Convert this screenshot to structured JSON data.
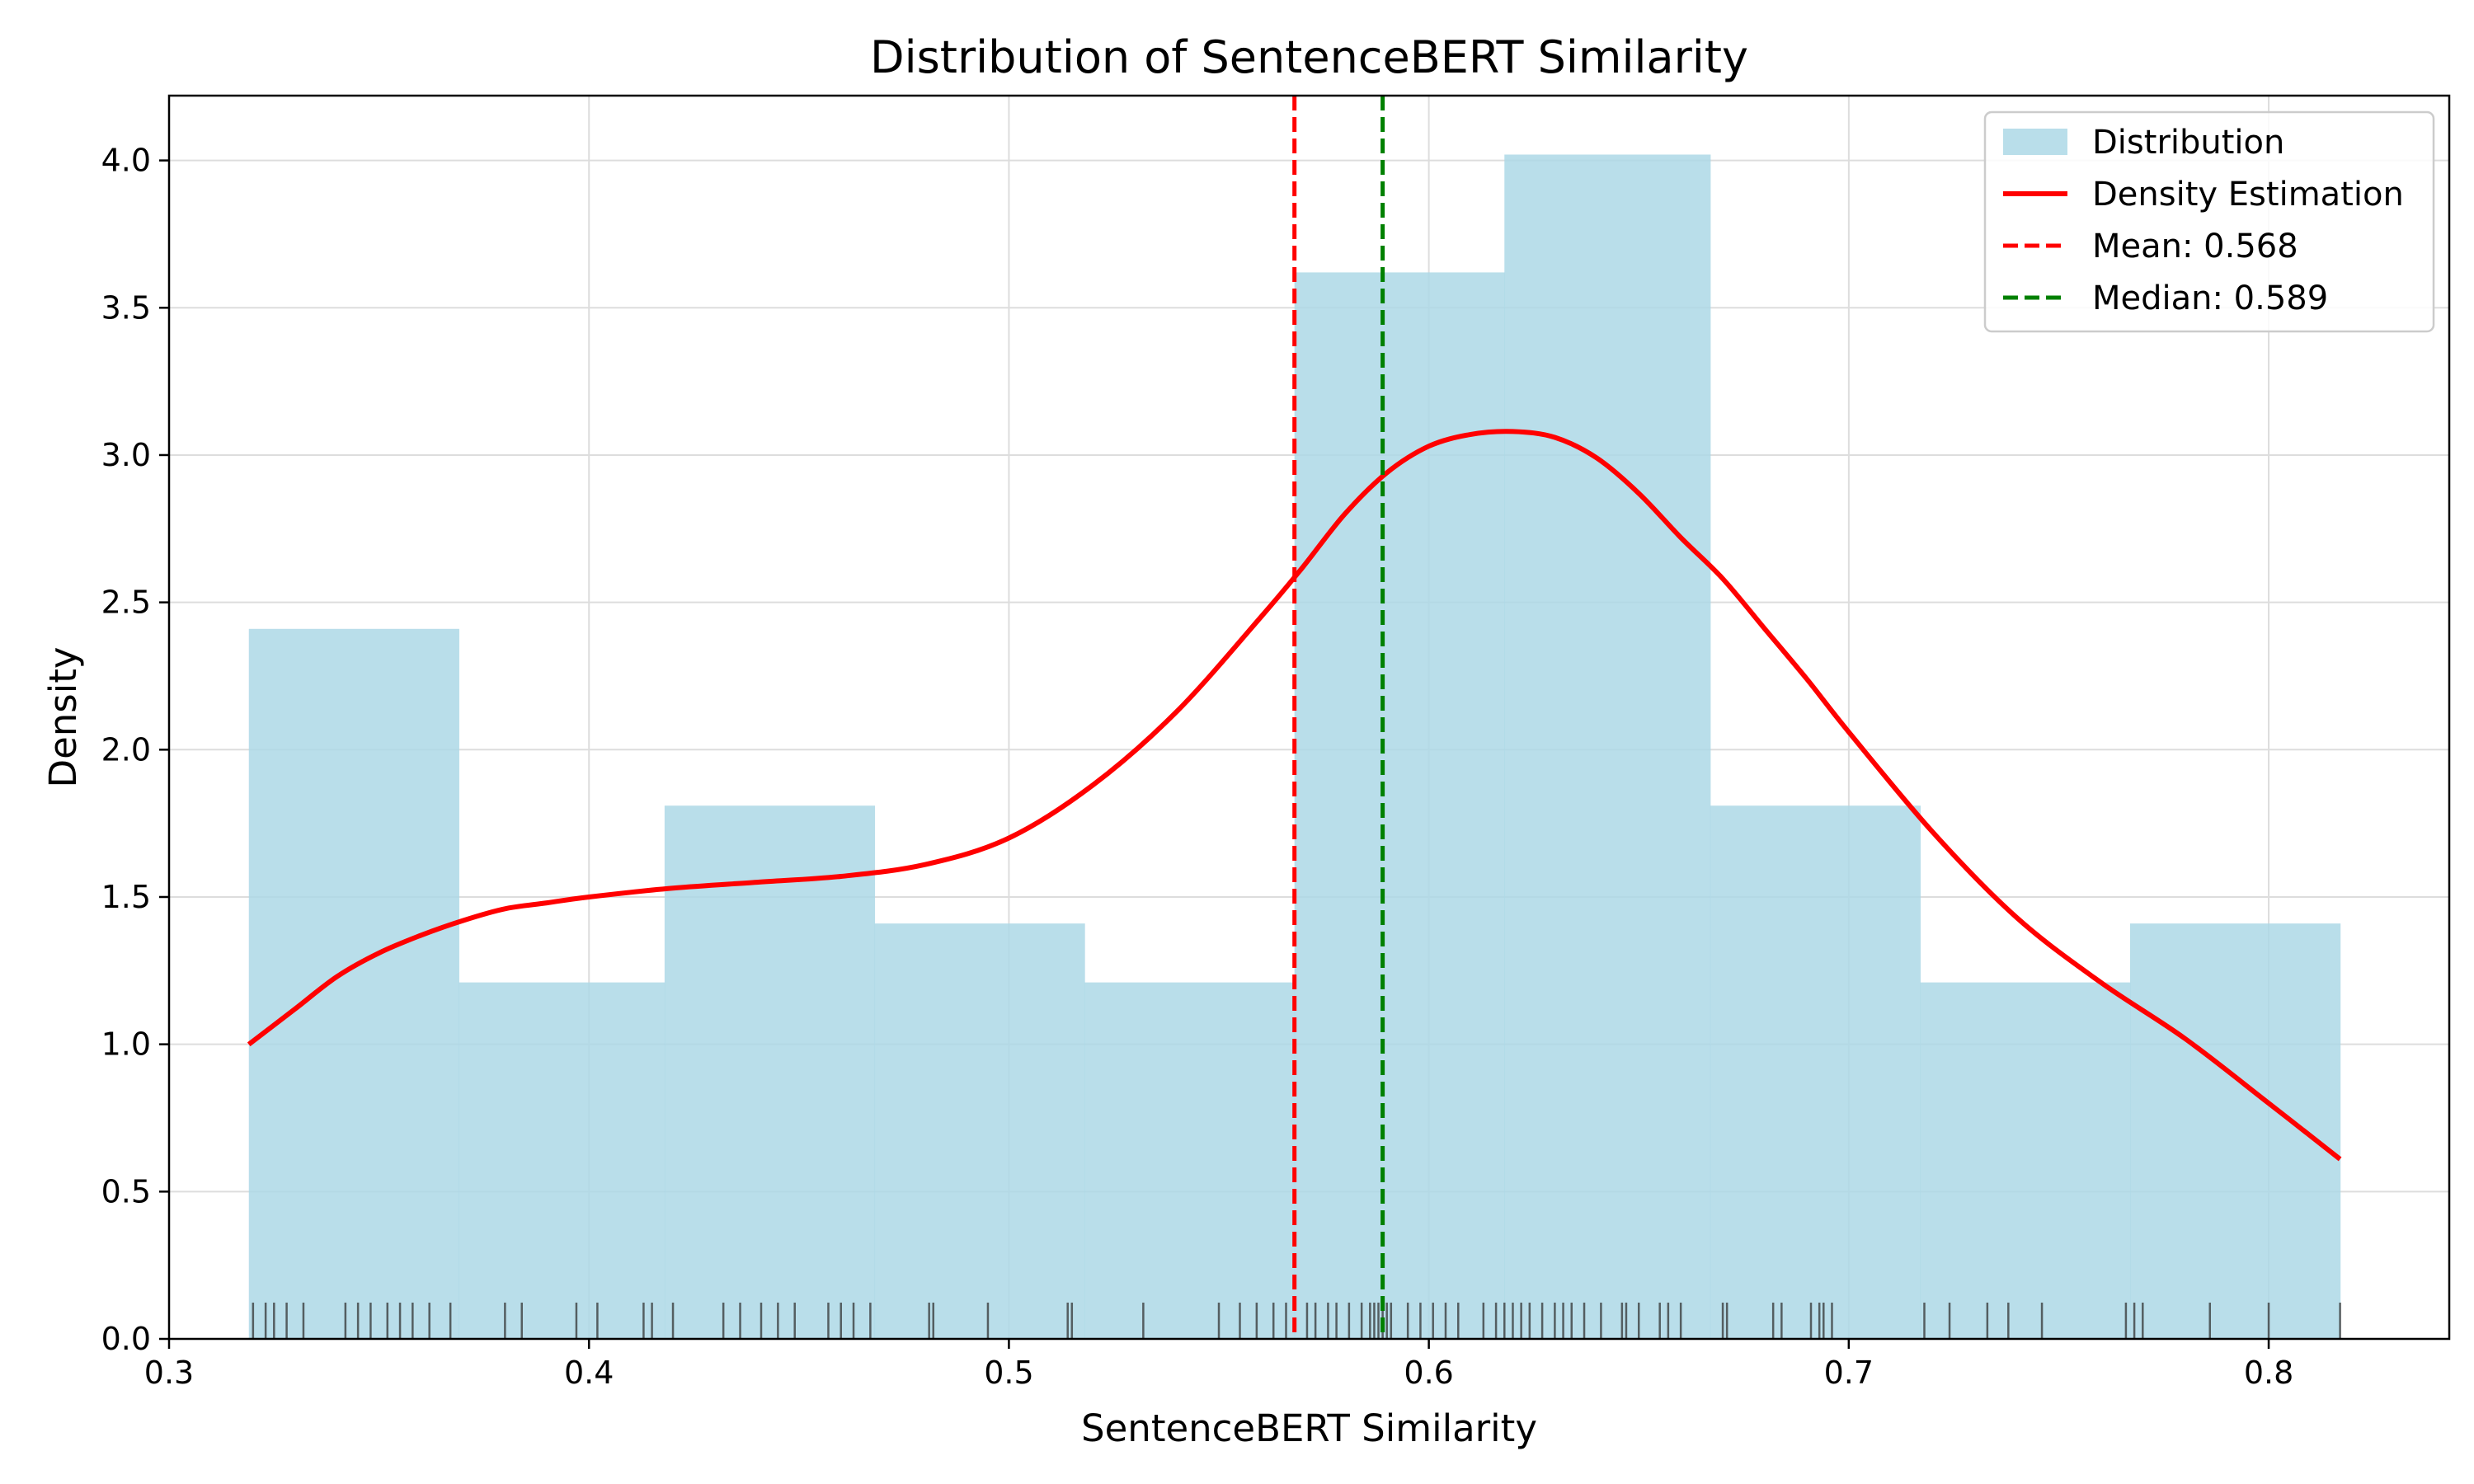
{
  "chart_data": {
    "type": "histogram",
    "title": "Distribution of SentenceBERT Similarity",
    "xlabel": "SentenceBERT Similarity",
    "ylabel": "Density",
    "xlim": [
      0.3,
      0.843
    ],
    "ylim": [
      0,
      4.22
    ],
    "xticks": [
      0.3,
      0.4,
      0.5,
      0.6,
      0.7,
      0.8
    ],
    "xtick_labels": [
      "0.3",
      "0.4",
      "0.5",
      "0.6",
      "0.7",
      "0.8"
    ],
    "yticks": [
      0.0,
      0.5,
      1.0,
      1.5,
      2.0,
      2.5,
      3.0,
      3.5,
      4.0
    ],
    "ytick_labels": [
      "0.0",
      "0.5",
      "1.0",
      "1.5",
      "2.0",
      "2.5",
      "3.0",
      "3.5",
      "4.0"
    ],
    "grid": true,
    "legend_position": "top-right",
    "bins": [
      {
        "x0": 0.319,
        "x1": 0.369,
        "value": 2.41
      },
      {
        "x0": 0.369,
        "x1": 0.418,
        "value": 1.21
      },
      {
        "x0": 0.418,
        "x1": 0.468,
        "value": 1.81
      },
      {
        "x0": 0.468,
        "x1": 0.518,
        "value": 1.41
      },
      {
        "x0": 0.518,
        "x1": 0.568,
        "value": 1.21
      },
      {
        "x0": 0.568,
        "x1": 0.618,
        "value": 3.62
      },
      {
        "x0": 0.618,
        "x1": 0.667,
        "value": 4.02
      },
      {
        "x0": 0.667,
        "x1": 0.717,
        "value": 1.81
      },
      {
        "x0": 0.717,
        "x1": 0.767,
        "value": 1.21
      },
      {
        "x0": 0.767,
        "x1": 0.817,
        "value": 1.41
      }
    ],
    "density": {
      "x": [
        0.319,
        0.33,
        0.34,
        0.35,
        0.36,
        0.37,
        0.38,
        0.39,
        0.4,
        0.42,
        0.44,
        0.46,
        0.48,
        0.5,
        0.52,
        0.54,
        0.56,
        0.57,
        0.58,
        0.59,
        0.6,
        0.61,
        0.62,
        0.63,
        0.64,
        0.65,
        0.66,
        0.67,
        0.68,
        0.69,
        0.7,
        0.72,
        0.74,
        0.76,
        0.78,
        0.8,
        0.817
      ],
      "y": [
        1.0,
        1.12,
        1.23,
        1.31,
        1.37,
        1.42,
        1.46,
        1.48,
        1.5,
        1.53,
        1.55,
        1.57,
        1.61,
        1.7,
        1.88,
        2.13,
        2.45,
        2.62,
        2.8,
        2.94,
        3.03,
        3.07,
        3.08,
        3.06,
        2.99,
        2.87,
        2.72,
        2.58,
        2.41,
        2.24,
        2.06,
        1.72,
        1.43,
        1.21,
        1.02,
        0.8,
        0.61
      ]
    },
    "rug": [
      0.32,
      0.323,
      0.325,
      0.328,
      0.332,
      0.342,
      0.345,
      0.348,
      0.352,
      0.355,
      0.358,
      0.362,
      0.367,
      0.38,
      0.384,
      0.397,
      0.402,
      0.413,
      0.415,
      0.42,
      0.432,
      0.436,
      0.441,
      0.445,
      0.449,
      0.457,
      0.46,
      0.463,
      0.467,
      0.481,
      0.482,
      0.495,
      0.514,
      0.515,
      0.532,
      0.55,
      0.555,
      0.559,
      0.563,
      0.566,
      0.571,
      0.573,
      0.576,
      0.578,
      0.581,
      0.584,
      0.586,
      0.587,
      0.588,
      0.589,
      0.59,
      0.591,
      0.595,
      0.598,
      0.601,
      0.604,
      0.607,
      0.613,
      0.616,
      0.618,
      0.62,
      0.622,
      0.624,
      0.627,
      0.63,
      0.632,
      0.634,
      0.637,
      0.641,
      0.646,
      0.647,
      0.65,
      0.655,
      0.657,
      0.66,
      0.67,
      0.671,
      0.682,
      0.684,
      0.691,
      0.693,
      0.694,
      0.696,
      0.718,
      0.724,
      0.733,
      0.738,
      0.746,
      0.766,
      0.768,
      0.77,
      0.786,
      0.8,
      0.817
    ],
    "mean": 0.568,
    "median": 0.589,
    "legend": [
      {
        "label": "Distribution",
        "kind": "patch",
        "color": "#add8e6"
      },
      {
        "label": "Density Estimation",
        "kind": "line",
        "color": "#ff0000"
      },
      {
        "label": "Mean: 0.568",
        "kind": "dashed",
        "color": "#ff0000"
      },
      {
        "label": "Median: 0.589",
        "kind": "dashed",
        "color": "#008000"
      }
    ],
    "colors": {
      "bars": "#add8e6",
      "kde": "#ff0000",
      "mean": "#ff0000",
      "median": "#008000",
      "rug": "#333333",
      "grid": "#dddddd"
    }
  }
}
